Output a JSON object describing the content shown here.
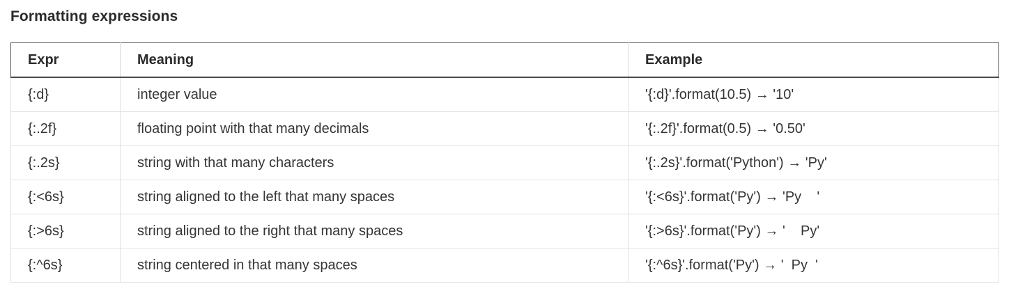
{
  "heading": "Formatting expressions",
  "table": {
    "headers": [
      "Expr",
      "Meaning",
      "Example"
    ],
    "rows": [
      {
        "expr": "{:d}",
        "meaning": "integer value",
        "example": "'{:d}'.format(10.5) → '10'"
      },
      {
        "expr": "{:.2f}",
        "meaning": "floating point with that many decimals",
        "example": "'{:.2f}'.format(0.5) → '0.50'"
      },
      {
        "expr": "{:.2s}",
        "meaning": "string with that many characters",
        "example": "'{:.2s}'.format('Python') → 'Py'"
      },
      {
        "expr": "{:<6s}",
        "meaning": "string aligned to the left that many spaces",
        "example": "'{:<6s}'.format('Py') → 'Py    '"
      },
      {
        "expr": "{:>6s}",
        "meaning": "string aligned to the right that many spaces",
        "example": "'{:>6s}'.format('Py') → '    Py'"
      },
      {
        "expr": "{:^6s}",
        "meaning": "string centered in that many spaces",
        "example": "'{:^6s}'.format('Py') → '  Py  '"
      }
    ]
  }
}
